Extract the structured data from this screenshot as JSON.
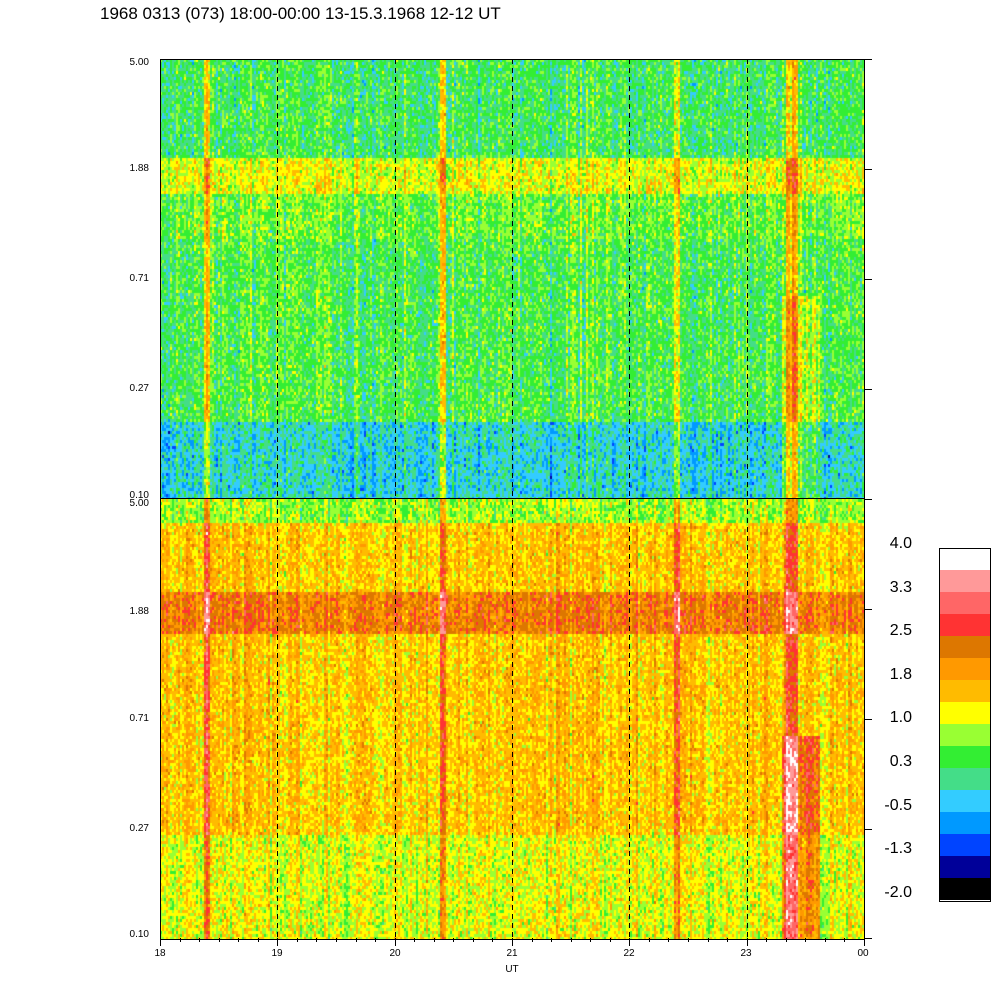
{
  "title": "1968 0313 (073) 18:00-00:00 13-15.3.1968  12-12 UT",
  "chart_data": [
    {
      "type": "heatmap",
      "panel": "top",
      "x_range": [
        18,
        24
      ],
      "x_tick_labels": [
        "18",
        "19",
        "20",
        "21",
        "22",
        "23",
        "00"
      ],
      "y_scale": "log",
      "y_range": [
        0.1,
        5.0
      ],
      "y_tick_labels": [
        "0.10",
        "0.27",
        "0.71",
        "1.88",
        "5.00"
      ],
      "dashed_gridlines_at_x": [
        19,
        20,
        21,
        22,
        23
      ],
      "dominant_levels": [
        {
          "y_range": [
            0.1,
            0.2
          ],
          "value": -0.2
        },
        {
          "y_range": [
            0.2,
            1.0
          ],
          "value": 0.4
        },
        {
          "y_range": [
            1.0,
            1.5
          ],
          "value": 0.6
        },
        {
          "y_range": [
            1.5,
            2.1
          ],
          "value": 1.1
        },
        {
          "y_range": [
            2.1,
            5.0
          ],
          "value": 0.3
        }
      ],
      "enhanced_columns_x": [
        18.4,
        20.4,
        22.4,
        23.35,
        23.4
      ]
    },
    {
      "type": "heatmap",
      "panel": "bottom",
      "x_range": [
        18,
        24
      ],
      "x_tick_labels": [
        "18",
        "19",
        "20",
        "21",
        "22",
        "23",
        "00"
      ],
      "xlabel": "UT",
      "y_scale": "log",
      "y_range": [
        0.1,
        5.0
      ],
      "y_tick_labels": [
        "0.10",
        "0.27",
        "0.71",
        "1.88",
        "5.00"
      ],
      "dashed_gridlines_at_x": [
        19,
        20,
        21,
        22,
        23
      ],
      "dominant_levels": [
        {
          "y_range": [
            0.1,
            0.25
          ],
          "value": 1.1
        },
        {
          "y_range": [
            0.25,
            1.5
          ],
          "value": 1.5
        },
        {
          "y_range": [
            1.5,
            2.2
          ],
          "value": 2.2
        },
        {
          "y_range": [
            2.2,
            4.0
          ],
          "value": 1.5
        },
        {
          "y_range": [
            4.0,
            5.0
          ],
          "value": 0.8
        }
      ],
      "enhanced_columns_x": [
        18.4,
        20.4,
        22.4,
        23.35,
        23.4
      ]
    }
  ],
  "colorbar": {
    "labels": [
      "4.0",
      "3.3",
      "2.5",
      "1.8",
      "1.0",
      "0.3",
      "-0.5",
      "-1.3",
      "-2.0"
    ],
    "range": [
      -2.0,
      4.0
    ],
    "colors": [
      "#000000",
      "#000099",
      "#0044ff",
      "#0099ff",
      "#33ccff",
      "#44dd88",
      "#33ee33",
      "#99ff33",
      "#ffff00",
      "#ffbb00",
      "#ff9900",
      "#dd7700",
      "#ff3333",
      "#ff6666",
      "#ff9999",
      "#ffffff"
    ]
  }
}
